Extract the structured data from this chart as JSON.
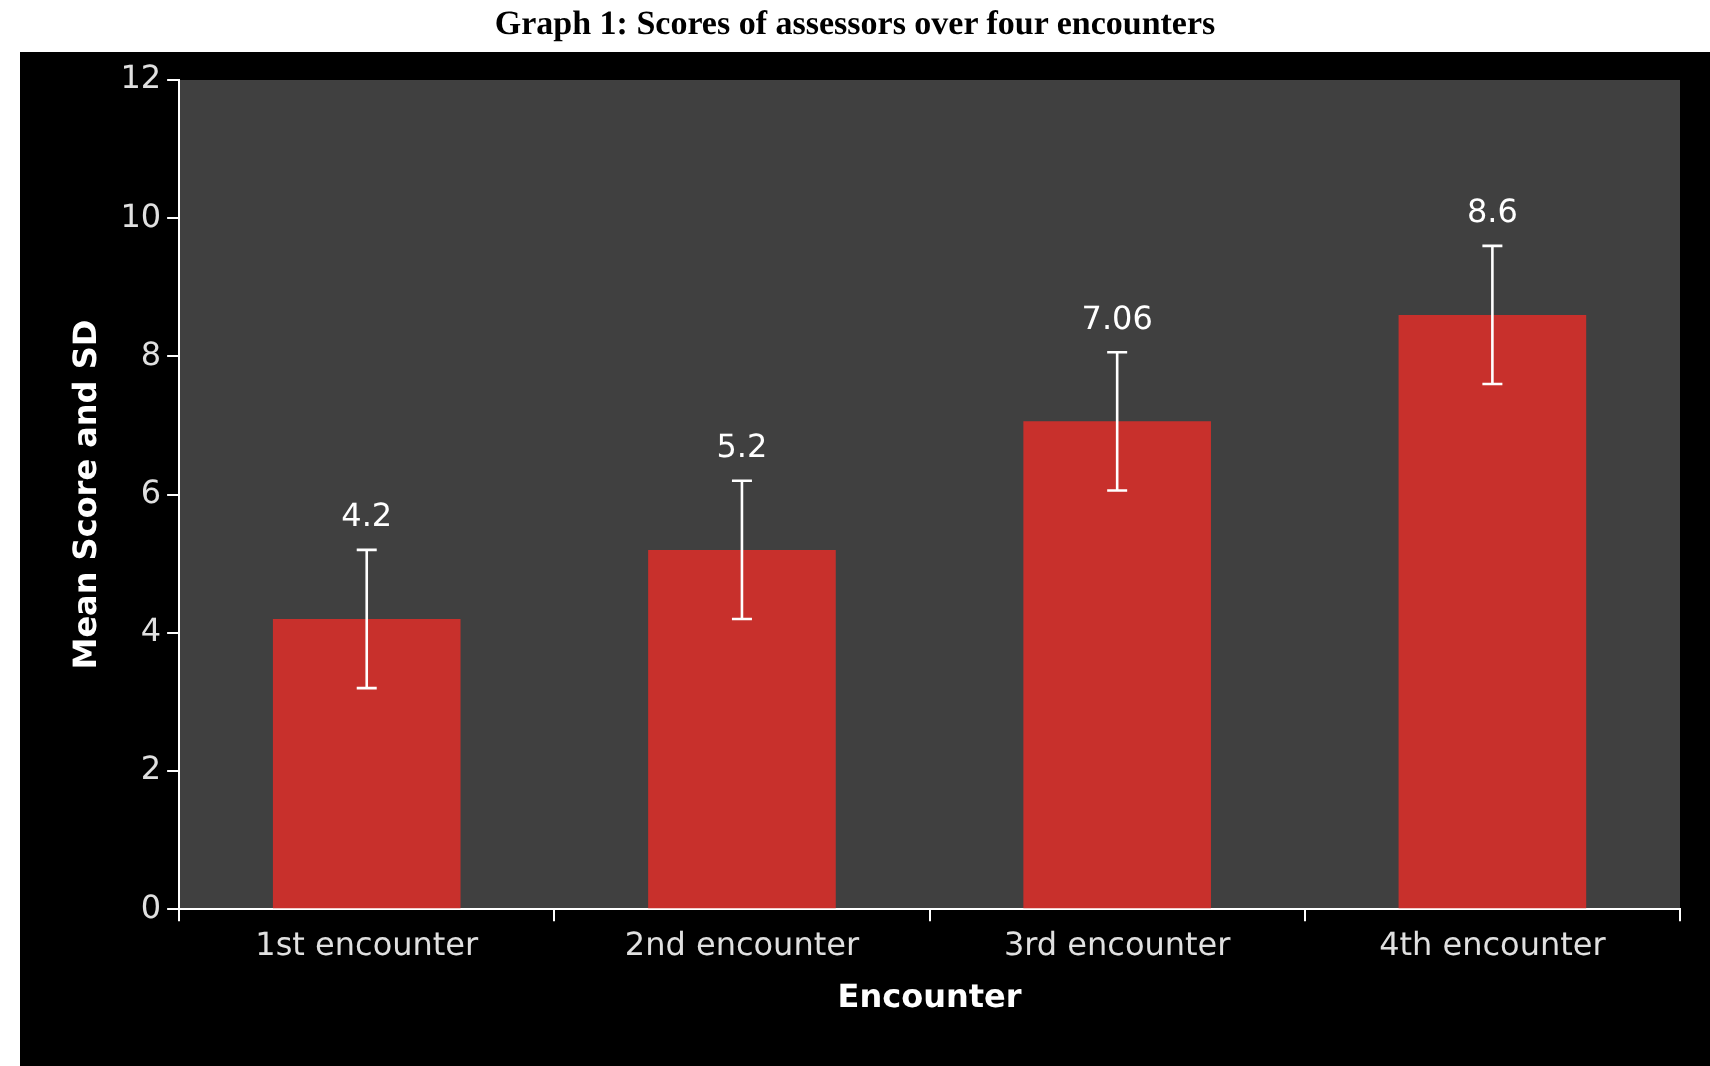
{
  "chart_data": {
    "type": "bar",
    "title": "Graph 1: Scores of assessors over four encounters",
    "xlabel": "Encounter",
    "ylabel": "Mean Score and SD",
    "categories": [
      "1st encounter",
      "2nd encounter",
      "3rd encounter",
      "4th encounter"
    ],
    "values": [
      4.2,
      5.2,
      7.06,
      8.6
    ],
    "errors": [
      1,
      1,
      1,
      1
    ],
    "color": "#c8302c",
    "ylim": [
      0,
      12
    ],
    "yticks": [
      0,
      2,
      4,
      6,
      8,
      10,
      12
    ],
    "data_labels": true,
    "grid": false,
    "legend": false
  }
}
